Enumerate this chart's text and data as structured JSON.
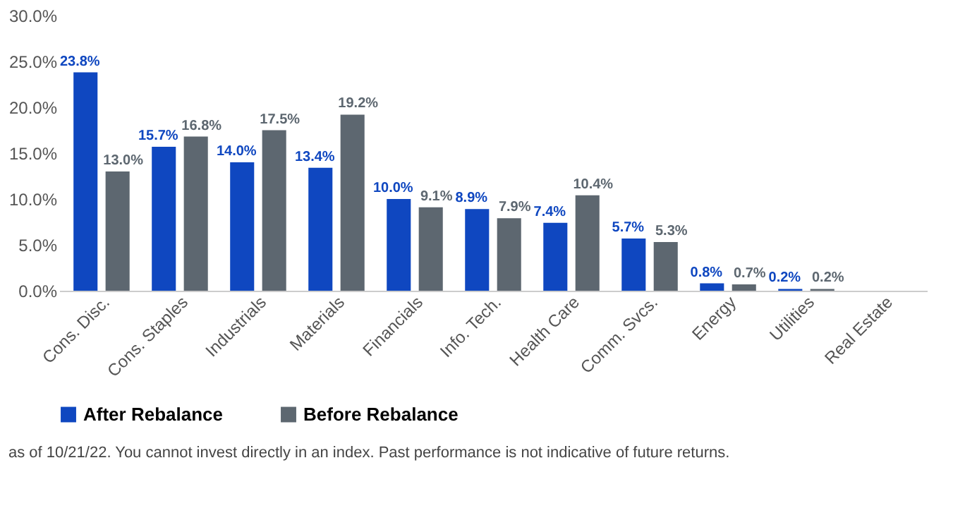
{
  "chart_data": {
    "type": "bar",
    "categories": [
      "Cons. Disc.",
      "Cons. Staples",
      "Industrials",
      "Materials",
      "Financials",
      "Info. Tech.",
      "Health Care",
      "Comm. Svcs.",
      "Energy",
      "Utilities",
      "Real Estate"
    ],
    "series": [
      {
        "name": "After Rebalance",
        "color": "#0f47c0",
        "values": [
          23.8,
          15.7,
          14.0,
          13.4,
          10.0,
          8.9,
          7.4,
          5.7,
          0.8,
          0.2,
          null
        ],
        "value_labels": [
          "23.8%",
          "15.7%",
          "14.0%",
          "13.4%",
          "10.0%",
          "8.9%",
          "7.4%",
          "5.7%",
          "0.8%",
          "0.2%",
          null
        ]
      },
      {
        "name": "Before Rebalance",
        "color": "#5d6770",
        "values": [
          13.0,
          16.8,
          17.5,
          19.2,
          9.1,
          7.9,
          10.4,
          5.3,
          0.7,
          0.2,
          null
        ],
        "value_labels": [
          "13.0%",
          "16.8%",
          "17.5%",
          "19.2%",
          "9.1%",
          "7.9%",
          "10.4%",
          "5.3%",
          "0.7%",
          "0.2%",
          null
        ]
      }
    ],
    "ylim": [
      0,
      30
    ],
    "yticks": [
      {
        "value": 0,
        "label": "0.0%"
      },
      {
        "value": 5,
        "label": "5.0%"
      },
      {
        "value": 10,
        "label": "10.0%"
      },
      {
        "value": 15,
        "label": "15.0%"
      },
      {
        "value": 20,
        "label": "20.0%"
      },
      {
        "value": 25,
        "label": "25.0%"
      },
      {
        "value": 30,
        "label": "30.0%"
      }
    ],
    "grid": false,
    "legend": "bottom",
    "annotations": [
      "as of 10/21/22. You cannot invest directly in an index. Past performance is not indicative of future returns."
    ]
  }
}
